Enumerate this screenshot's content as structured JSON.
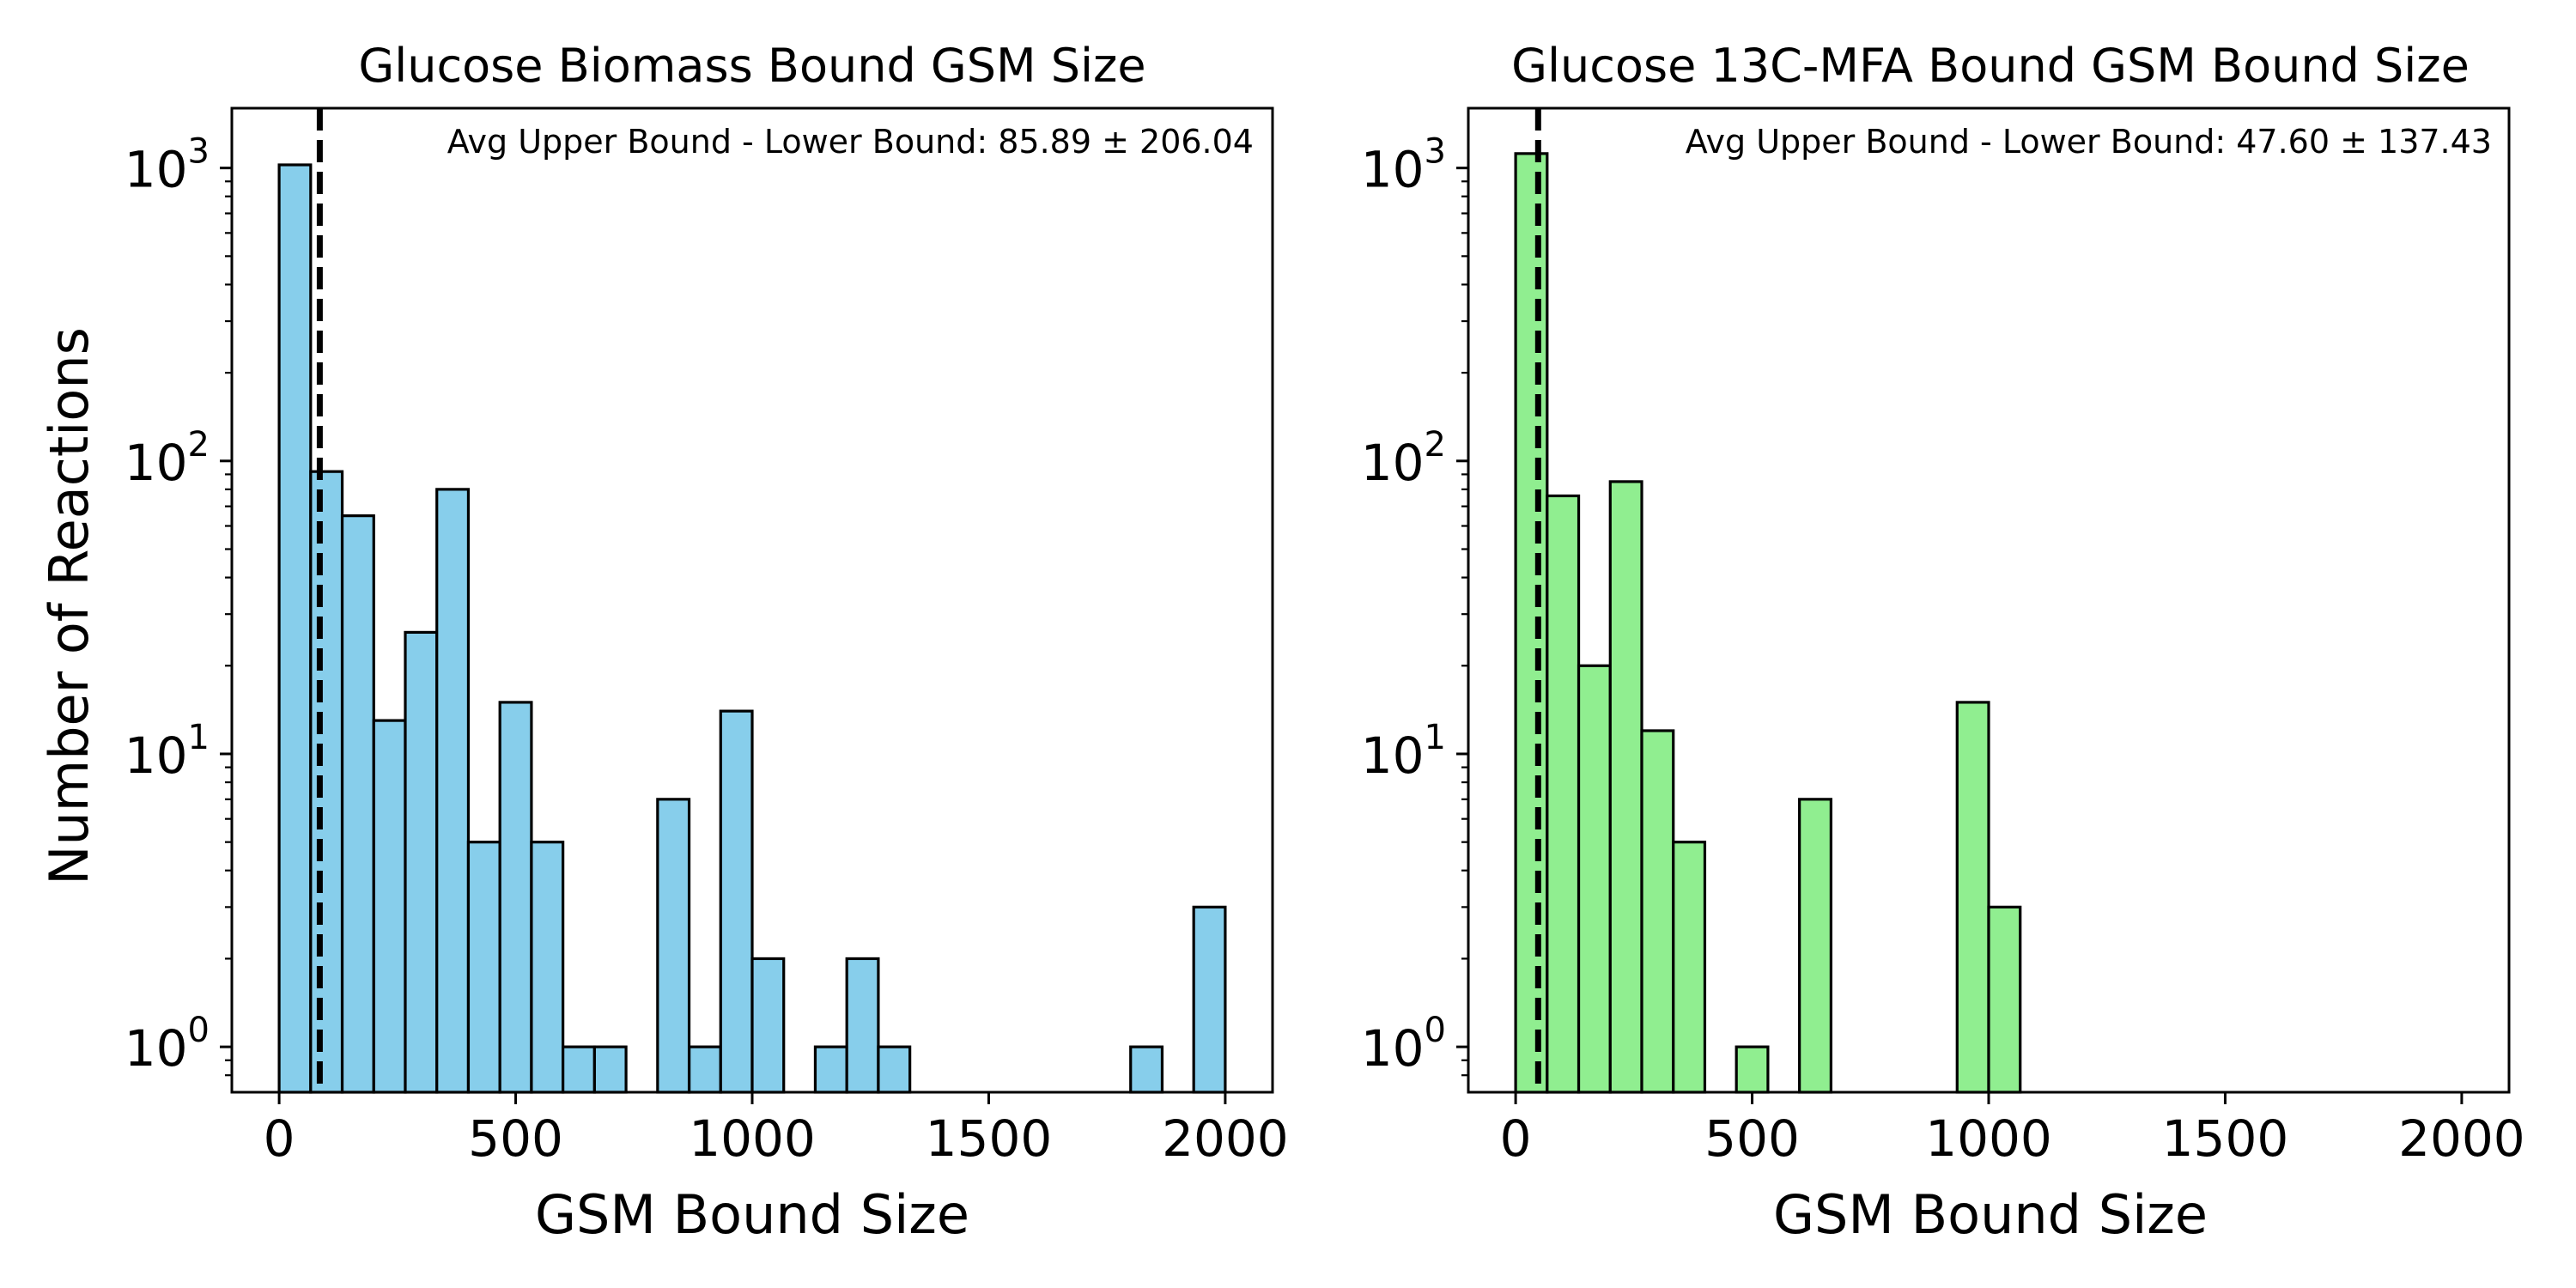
{
  "chart_data": [
    {
      "type": "bar",
      "title": "Glucose Biomass Bound GSM Size",
      "xlabel": "GSM Bound Size",
      "ylabel": "Number of Reactions",
      "annotation": "Avg Upper Bound - Lower Bound: 85.89 ± 206.04",
      "mean_line_x": 85.89,
      "yscale": "log",
      "xlim": [
        -100,
        2100
      ],
      "ylim": [
        0.7,
        1600
      ],
      "xticks": [
        0,
        500,
        1000,
        1500,
        2000
      ],
      "xtick_labels": [
        "0",
        "500",
        "1000",
        "1500",
        "2000"
      ],
      "yticks": [
        1,
        10,
        100,
        1000
      ],
      "ytick_labels": [
        {
          "base": "10",
          "exp": "0"
        },
        {
          "base": "10",
          "exp": "1"
        },
        {
          "base": "10",
          "exp": "2"
        },
        {
          "base": "10",
          "exp": "3"
        }
      ],
      "bin_width": 66.67,
      "bin_starts": [
        0,
        66.67,
        133.33,
        200,
        266.67,
        333.33,
        400,
        466.67,
        533.33,
        600,
        666.67,
        866.67,
        800,
        933.33,
        1000,
        1133.33,
        1200,
        1266.67,
        1800,
        1933.33
      ],
      "bin_counts": [
        1025,
        92,
        65,
        13,
        26,
        80,
        5,
        15,
        5,
        1,
        1,
        1,
        7,
        14,
        2,
        1,
        2,
        1,
        1,
        3
      ],
      "bar_color": "#87CEEB",
      "edge_color": "#000000",
      "grid": false
    },
    {
      "type": "bar",
      "title": "Glucose 13C-MFA Bound GSM Bound Size",
      "xlabel": "GSM Bound Size",
      "ylabel": "",
      "annotation": "Avg Upper Bound - Lower Bound: 47.60 ± 137.43",
      "mean_line_x": 47.6,
      "yscale": "log",
      "xlim": [
        -100,
        2100
      ],
      "ylim": [
        0.7,
        1600
      ],
      "xticks": [
        0,
        500,
        1000,
        1500,
        2000
      ],
      "xtick_labels": [
        "0",
        "500",
        "1000",
        "1500",
        "2000"
      ],
      "yticks": [
        1,
        10,
        100,
        1000
      ],
      "ytick_labels": [
        {
          "base": "10",
          "exp": "0"
        },
        {
          "base": "10",
          "exp": "1"
        },
        {
          "base": "10",
          "exp": "2"
        },
        {
          "base": "10",
          "exp": "3"
        }
      ],
      "bin_width": 66.67,
      "bin_starts": [
        0,
        66.67,
        133.33,
        200,
        266.67,
        333.33,
        466.67,
        600,
        933.33,
        1000
      ],
      "bin_counts": [
        1120,
        76,
        20,
        85,
        12,
        5,
        1,
        7,
        15,
        3
      ],
      "bar_color": "#90EE90",
      "edge_color": "#000000",
      "grid": false
    }
  ]
}
